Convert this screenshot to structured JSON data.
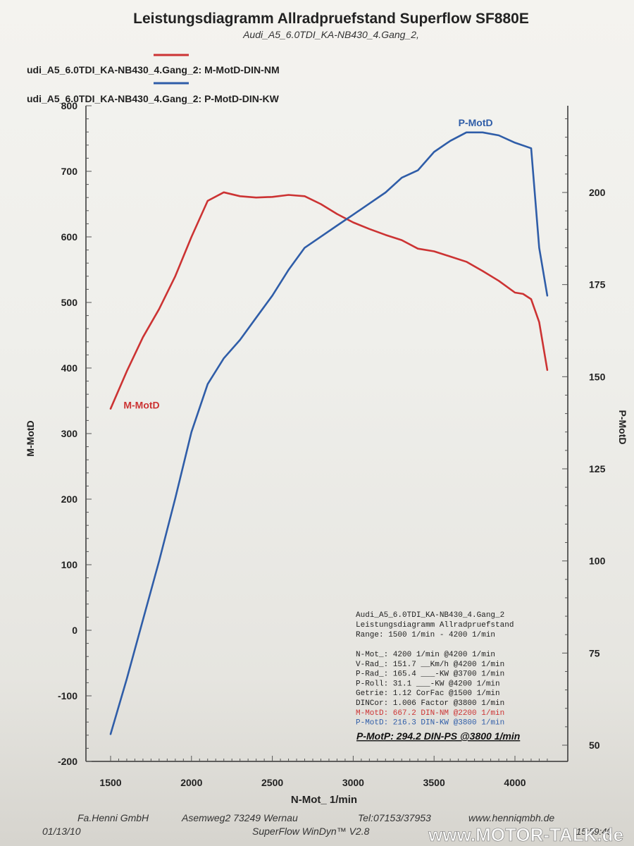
{
  "chart_data": {
    "type": "line",
    "title": "Leistungsdiagramm Allradpruefstand Superflow SF880E",
    "subtitle": "Audi_A5_6.0TDI_KA-NB430_4.Gang_2,",
    "xlabel": "N-Mot_ 1/min",
    "ylabel_left": "M-MotD",
    "ylabel_right": "P-MotD",
    "xlim": [
      1450,
      4250
    ],
    "ylim_left": [
      -200,
      800
    ],
    "ylim_right": [
      48,
      250
    ],
    "x_ticks": [
      "1500",
      "2000",
      "2500",
      "3000",
      "3500",
      "4000"
    ],
    "y_ticks_left": [
      "800",
      "700",
      "600",
      "500",
      "400",
      "300",
      "200",
      "100",
      "0",
      "-100",
      "-200"
    ],
    "y_ticks_right": [
      "200",
      "175",
      "150",
      "125",
      "100",
      "75",
      "50"
    ],
    "grid": false,
    "legend": [
      {
        "label": "udi_A5_6.0TDI_KA-NB430_4.Gang_2: M-MotD-DIN-NM",
        "color": "#cc3333"
      },
      {
        "label": "udi_A5_6.0TDI_KA-NB430_4.Gang_2: P-MotD-DIN-KW",
        "color": "#2f5da8"
      }
    ],
    "series": [
      {
        "name": "M-MotD",
        "axis": "left",
        "color": "#cc3333",
        "x": [
          1500,
          1600,
          1700,
          1800,
          1900,
          2000,
          2100,
          2200,
          2300,
          2400,
          2500,
          2600,
          2700,
          2800,
          2900,
          3000,
          3100,
          3200,
          3300,
          3400,
          3500,
          3600,
          3700,
          3800,
          3900,
          4000,
          4050,
          4100,
          4150,
          4200
        ],
        "values": [
          338,
          395,
          447,
          490,
          540,
          600,
          655,
          668,
          662,
          660,
          661,
          664,
          662,
          650,
          635,
          622,
          612,
          603,
          595,
          582,
          578,
          570,
          562,
          548,
          533,
          515,
          513,
          505,
          470,
          397
        ]
      },
      {
        "name": "P-MotD",
        "axis": "right",
        "color": "#2f5da8",
        "x": [
          1500,
          1600,
          1700,
          1800,
          1900,
          2000,
          2100,
          2200,
          2300,
          2400,
          2500,
          2600,
          2700,
          2800,
          2900,
          3000,
          3100,
          3200,
          3300,
          3400,
          3500,
          3600,
          3700,
          3800,
          3900,
          4000,
          4100,
          4150,
          4200
        ],
        "values": [
          53,
          68,
          84,
          100,
          117,
          135,
          148,
          155,
          160,
          166,
          172,
          179,
          185,
          188,
          191,
          194,
          197,
          200,
          204,
          206,
          211,
          214,
          216.3,
          216.3,
          215.5,
          213.5,
          212,
          185,
          172
        ]
      }
    ],
    "curve_labels": [
      {
        "text": "M-MotD",
        "color": "#cc3333",
        "x": 1580,
        "y": 338,
        "axis": "left"
      },
      {
        "text": "P-MotD",
        "color": "#2f5da8",
        "x": 3650,
        "y": 218,
        "axis": "right"
      }
    ]
  },
  "results_box": {
    "header": [
      "Audi_A5_6.0TDI_KA-NB430_4.Gang_2",
      "Leistungsdiagramm Allradpruefstand",
      "Range: 1500 1/min - 4200 1/min"
    ],
    "rows": [
      {
        "text": "N-Mot_:    4200 1/min  @4200 1/min",
        "color": "#222222"
      },
      {
        "text": "V-Rad_:   151.7 __Km/h @4200 1/min",
        "color": "#222222"
      },
      {
        "text": "P-Rad_:   165.4 ___-KW @3700 1/min",
        "color": "#222222"
      },
      {
        "text": "P-Roll:    31.1 ___-KW @4200 1/min",
        "color": "#222222"
      },
      {
        "text": "Getrie:    1.12 CorFac @1500 1/min",
        "color": "#222222"
      },
      {
        "text": "DINCor:   1.006 Factor @3800 1/min",
        "color": "#222222"
      },
      {
        "text": "M-MotD:   667.2 DIN-NM @2200 1/min",
        "color": "#cc3333"
      },
      {
        "text": "P-MotD:   216.3 DIN-KW @3800 1/min",
        "color": "#2f5da8"
      }
    ],
    "summary": "P-MotP:  294.2 DIN-PS @3800 1/min"
  },
  "footer": {
    "company": "Fa.Henni GmbH",
    "address": "Asemweg2   73249 Wernau",
    "phone": "Tel:07153/37953",
    "website": "www.henniqmbh.de",
    "date": "01/13/10",
    "software": "SuperFlow WinDyn™ V2.8",
    "time": "15:59:40",
    "watermark": "www.MOTOR-TALK.de"
  },
  "colors": {
    "m_motd": "#cc3333",
    "p_motd": "#2f5da8",
    "axis": "#333333"
  }
}
